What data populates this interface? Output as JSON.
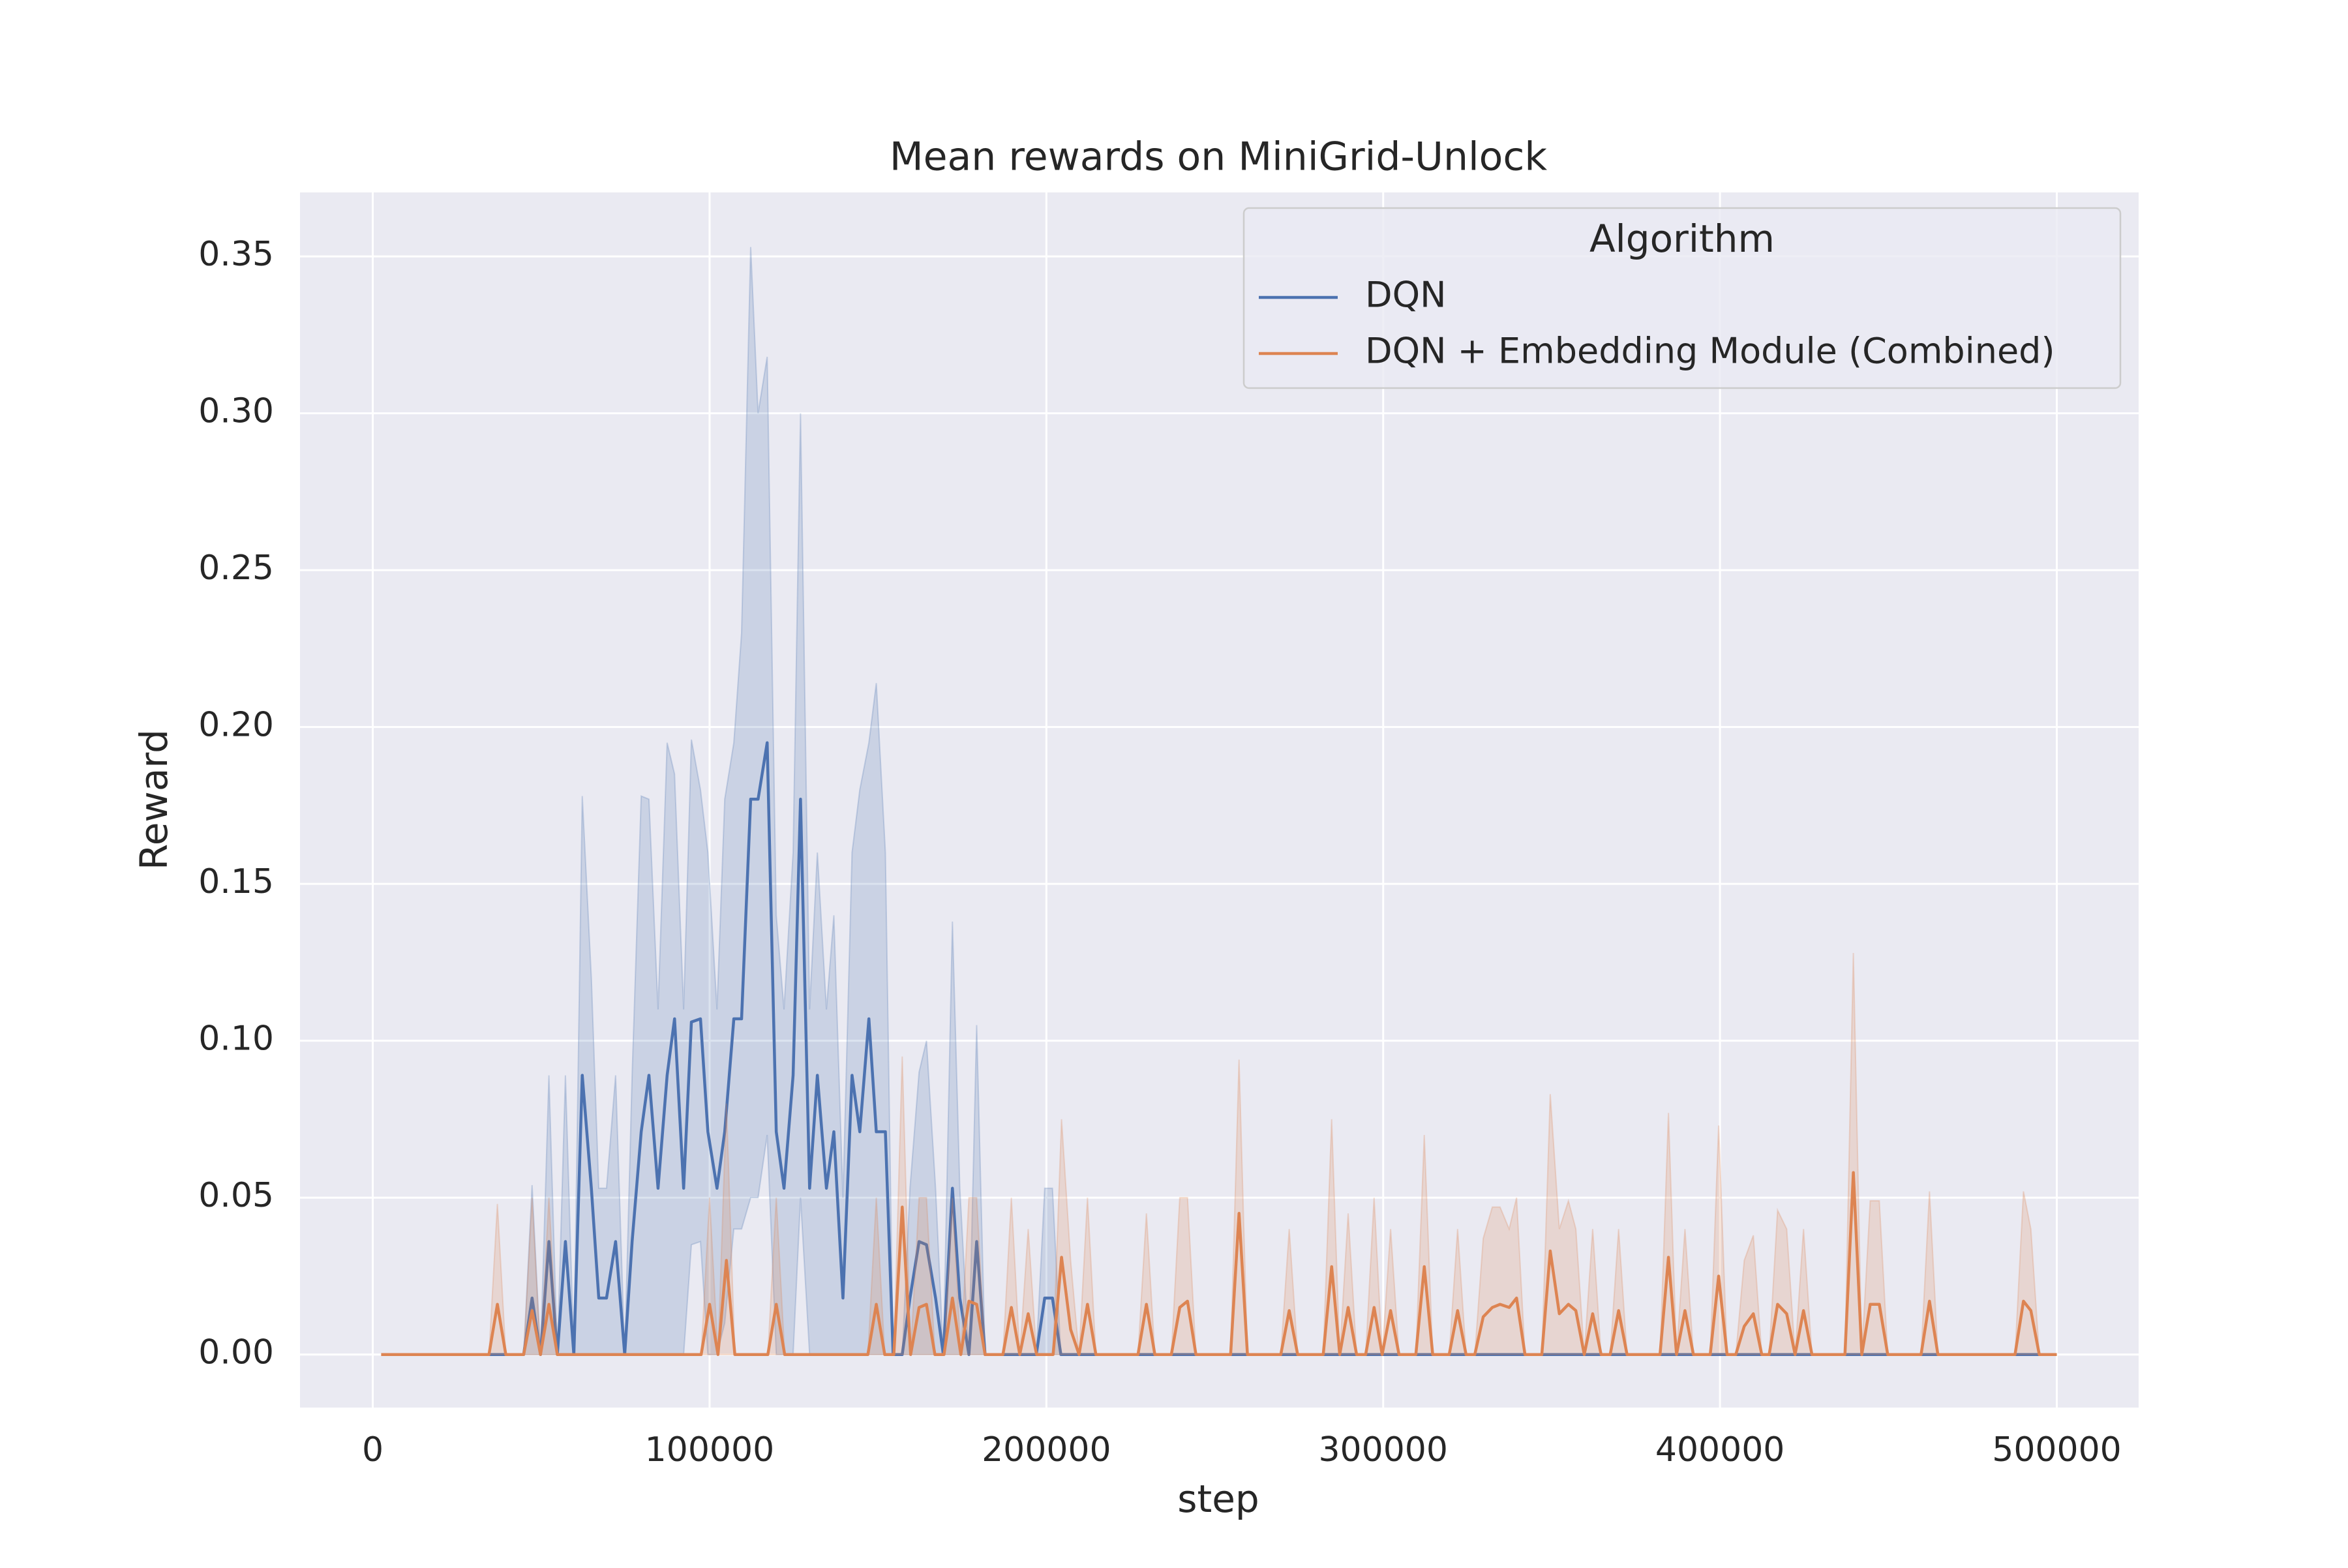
{
  "chart_data": {
    "type": "line",
    "title": "Mean rewards on MiniGrid-Unlock",
    "x_label": "step",
    "y_label": "Reward",
    "legend_title": "Algorithm",
    "legend": "upper right",
    "grid": true,
    "xlim": [
      -21600,
      524300
    ],
    "ylim": [
      -0.0169,
      0.3704
    ],
    "xticks": [
      0,
      100000,
      200000,
      300000,
      400000,
      500000
    ],
    "yticks": [
      {
        "value": 0,
        "label": "0.00"
      },
      0.05,
      {
        "value": 0.1,
        "label": "0.10"
      },
      0.15,
      {
        "value": 0.2,
        "label": "0.20"
      },
      0.25,
      {
        "value": 0.3,
        "label": "0.30"
      },
      0.35
    ],
    "series": [
      {
        "name": "DQN",
        "color": "#4c72b0",
        "x": [
          2500,
          44800,
          47300,
          49800,
          52300,
          54800,
          57200,
          59700,
          62200,
          64900,
          67100,
          69400,
          72100,
          74800,
          77000,
          79700,
          82000,
          84700,
          87400,
          89600,
          92300,
          94600,
          97300,
          99500,
          102200,
          104500,
          107200,
          109500,
          112200,
          114400,
          117100,
          119800,
          122100,
          124800,
          127000,
          129700,
          132000,
          134700,
          136900,
          139600,
          142300,
          144600,
          147300,
          149500,
          152200,
          154500,
          157200,
          159500,
          162200,
          164400,
          167100,
          169400,
          172100,
          174300,
          177000,
          179300,
          181800,
          197000,
          199500,
          201800,
          204300,
          500000
        ],
        "values": [
          0,
          0,
          0.018,
          0,
          0.036,
          0,
          0.036,
          0,
          0.089,
          0.053,
          0.018,
          0.018,
          0.036,
          0,
          0.036,
          0.071,
          0.089,
          0.053,
          0.089,
          0.107,
          0.053,
          0.106,
          0.107,
          0.071,
          0.053,
          0.071,
          0.107,
          0.107,
          0.177,
          0.177,
          0.195,
          0.071,
          0.053,
          0.089,
          0.177,
          0.053,
          0.089,
          0.053,
          0.071,
          0.018,
          0.089,
          0.071,
          0.107,
          0.071,
          0.071,
          0,
          0,
          0.018,
          0.036,
          0.035,
          0.018,
          0,
          0.053,
          0.018,
          0,
          0.036,
          0,
          0,
          0.018,
          0.018,
          0,
          0
        ],
        "upper": [
          0,
          0,
          0.054,
          0,
          0.089,
          0,
          0.089,
          0,
          0.178,
          0.12,
          0.053,
          0.053,
          0.089,
          0,
          0.089,
          0.178,
          0.177,
          0.11,
          0.195,
          0.185,
          0.11,
          0.196,
          0.18,
          0.16,
          0.11,
          0.177,
          0.195,
          0.23,
          0.353,
          0.3,
          0.318,
          0.14,
          0.11,
          0.16,
          0.3,
          0.11,
          0.16,
          0.11,
          0.14,
          0.05,
          0.16,
          0.18,
          0.195,
          0.214,
          0.16,
          0,
          0,
          0.053,
          0.09,
          0.1,
          0.053,
          0,
          0.138,
          0.053,
          0,
          0.105,
          0,
          0,
          0.053,
          0.053,
          0,
          0
        ],
        "lower": [
          0,
          0,
          0,
          0,
          0,
          0,
          0,
          0,
          0,
          0,
          0,
          0,
          0,
          0,
          0,
          0,
          0,
          0,
          0,
          0,
          0,
          0.035,
          0.036,
          0,
          0,
          0.01,
          0.04,
          0.04,
          0.05,
          0.05,
          0.07,
          0,
          0,
          0,
          0.05,
          0,
          0,
          0,
          0,
          0,
          0,
          0,
          0,
          0,
          0,
          0,
          0,
          0,
          0,
          0,
          0,
          0,
          0,
          0,
          0,
          0,
          0,
          0,
          0,
          0,
          0,
          0
        ]
      },
      {
        "name": "DQN + Embedding Module (Combined)",
        "color": "#dd8452",
        "x": [
          2500,
          34500,
          37000,
          39500,
          44800,
          47300,
          49800,
          52300,
          54800,
          97500,
          100000,
          102500,
          105000,
          107500,
          117300,
          119800,
          122300,
          147000,
          149500,
          152000,
          154700,
          157200,
          159700,
          162200,
          164400,
          166900,
          169600,
          172100,
          174600,
          177000,
          179300,
          181800,
          187100,
          189600,
          192100,
          194600,
          197100,
          202000,
          204500,
          207200,
          209700,
          212200,
          214700,
          227200,
          229700,
          232200,
          237100,
          239600,
          241900,
          244400,
          254700,
          257200,
          259700,
          269600,
          272100,
          274600,
          282200,
          284700,
          287100,
          289600,
          292100,
          294800,
          297300,
          299700,
          302200,
          304700,
          309700,
          312200,
          314700,
          319600,
          322100,
          324600,
          327200,
          329700,
          332400,
          334700,
          337400,
          339600,
          342100,
          347100,
          349600,
          352300,
          355000,
          357200,
          359700,
          362200,
          364700,
          367400,
          369900,
          372400,
          382200,
          384700,
          387100,
          389600,
          392100,
          397100,
          399600,
          402100,
          404700,
          407200,
          409900,
          412400,
          414600,
          417100,
          419800,
          422300,
          424800,
          427300,
          437100,
          439600,
          442100,
          444600,
          447300,
          449800,
          459700,
          462200,
          464700,
          487600,
          490100,
          492300,
          494800,
          500000
        ],
        "values": [
          0,
          0,
          0.016,
          0,
          0,
          0.014,
          0,
          0.016,
          0,
          0,
          0.016,
          0,
          0.03,
          0,
          0,
          0.016,
          0,
          0,
          0.016,
          0,
          0,
          0.047,
          0,
          0.015,
          0.016,
          0,
          0,
          0.018,
          0,
          0.017,
          0.016,
          0,
          0,
          0.015,
          0,
          0.013,
          0,
          0,
          0.031,
          0.008,
          0,
          0.016,
          0,
          0,
          0.016,
          0,
          0,
          0.015,
          0.017,
          0,
          0,
          0.045,
          0,
          0,
          0.014,
          0,
          0,
          0.028,
          0,
          0.015,
          0,
          0,
          0.015,
          0,
          0.014,
          0,
          0,
          0.028,
          0,
          0,
          0.014,
          0,
          0,
          0.012,
          0.015,
          0.016,
          0.015,
          0.018,
          0,
          0,
          0.033,
          0.013,
          0.016,
          0.014,
          0,
          0.013,
          0,
          0,
          0.014,
          0,
          0,
          0.031,
          0,
          0.014,
          0,
          0,
          0.025,
          0,
          0,
          0.009,
          0.013,
          0,
          0,
          0.016,
          0.013,
          0,
          0.014,
          0,
          0,
          0.058,
          0,
          0.016,
          0.016,
          0,
          0,
          0.017,
          0,
          0,
          0.017,
          0.014,
          0,
          0
        ],
        "upper": [
          0,
          0,
          0.048,
          0,
          0,
          0.05,
          0,
          0.05,
          0,
          0,
          0.05,
          0,
          0.08,
          0,
          0,
          0.05,
          0,
          0,
          0.05,
          0,
          0,
          0.095,
          0,
          0.05,
          0.05,
          0,
          0,
          0.05,
          0,
          0.05,
          0.05,
          0,
          0,
          0.05,
          0,
          0.04,
          0,
          0,
          0.075,
          0.03,
          0,
          0.05,
          0,
          0,
          0.045,
          0,
          0,
          0.05,
          0.05,
          0,
          0,
          0.094,
          0,
          0,
          0.04,
          0,
          0,
          0.075,
          0,
          0.045,
          0,
          0,
          0.05,
          0,
          0.04,
          0,
          0,
          0.07,
          0,
          0,
          0.04,
          0,
          0,
          0.037,
          0.047,
          0.047,
          0.04,
          0.05,
          0,
          0,
          0.083,
          0.04,
          0.049,
          0.04,
          0,
          0.04,
          0,
          0,
          0.04,
          0,
          0,
          0.077,
          0,
          0.04,
          0,
          0,
          0.073,
          0,
          0,
          0.03,
          0.038,
          0,
          0,
          0.046,
          0.04,
          0,
          0.04,
          0,
          0,
          0.128,
          0,
          0.049,
          0.049,
          0,
          0,
          0.052,
          0,
          0,
          0.052,
          0.04,
          0,
          0
        ]
      }
    ]
  }
}
